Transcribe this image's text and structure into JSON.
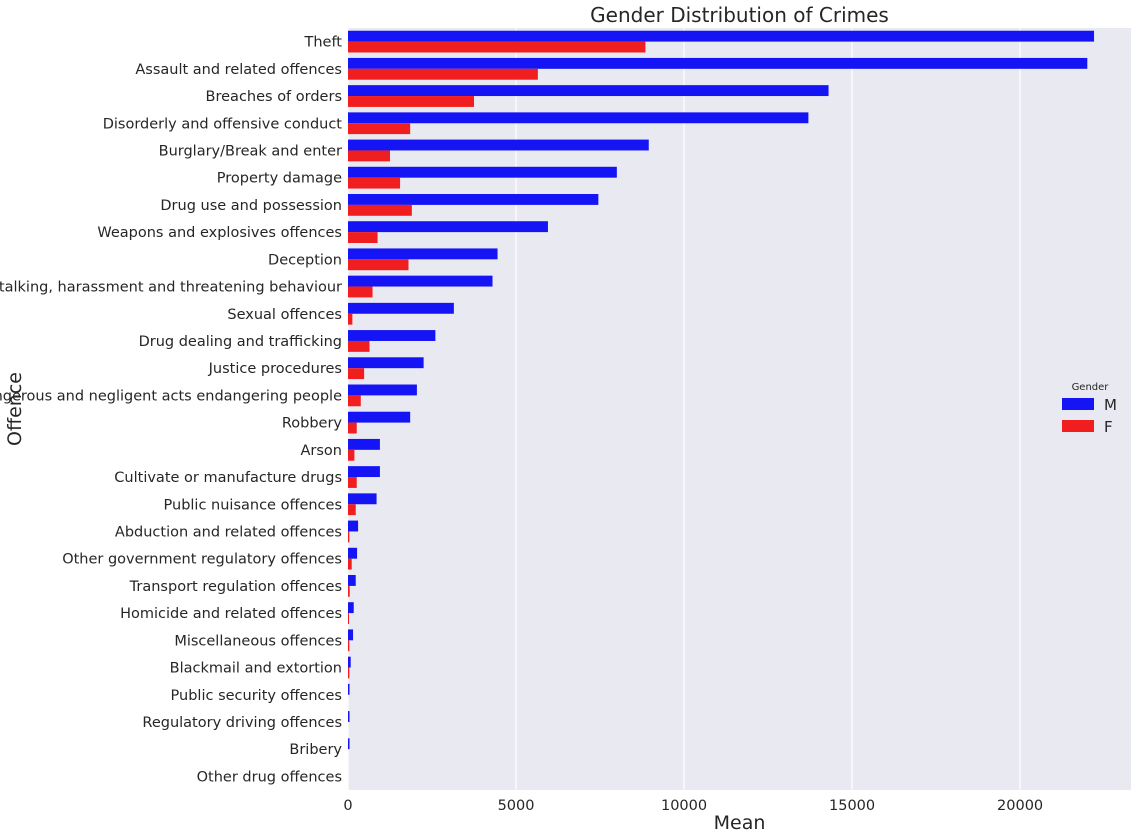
{
  "chart_data": {
    "type": "bar",
    "orientation": "horizontal",
    "title": "Gender Distribution of Crimes",
    "xlabel": "Mean",
    "ylabel": "Offence",
    "xlim": [
      0,
      23300
    ],
    "xticks": [
      0,
      5000,
      10000,
      15000,
      20000
    ],
    "grid": true,
    "legend": {
      "title": "Gender",
      "placement": "center-right"
    },
    "categories": [
      "Theft",
      "Assault and related offences",
      "Breaches of orders",
      "Disorderly and offensive conduct",
      "Burglary/Break and enter",
      "Property damage",
      "Drug use and possession",
      "Weapons and explosives offences",
      "Deception",
      "Stalking, harassment and threatening behaviour",
      "Sexual offences",
      "Drug dealing and trafficking",
      "Justice procedures",
      "Dangerous and negligent acts endangering people",
      "Robbery",
      "Arson",
      "Cultivate or manufacture drugs",
      "Public nuisance offences",
      "Abduction and related offences",
      "Other government regulatory offences",
      "Transport regulation offences",
      "Homicide and related offences",
      "Miscellaneous offences",
      "Blackmail and extortion",
      "Public security offences",
      "Regulatory driving offences",
      "Bribery",
      "Other drug offences"
    ],
    "series": [
      {
        "name": "M",
        "color": "#1414f5",
        "values": [
          22200,
          22000,
          14300,
          13700,
          8950,
          8000,
          7450,
          5950,
          4450,
          4300,
          3150,
          2600,
          2250,
          2050,
          1850,
          950,
          950,
          850,
          300,
          270,
          230,
          170,
          150,
          80,
          45,
          45,
          45,
          0
        ]
      },
      {
        "name": "F",
        "color": "#f01e1e",
        "values": [
          8850,
          5650,
          3750,
          1850,
          1250,
          1550,
          1900,
          880,
          1800,
          730,
          130,
          640,
          480,
          380,
          260,
          190,
          260,
          230,
          40,
          110,
          50,
          30,
          40,
          40,
          0,
          0,
          0,
          0
        ]
      }
    ]
  }
}
